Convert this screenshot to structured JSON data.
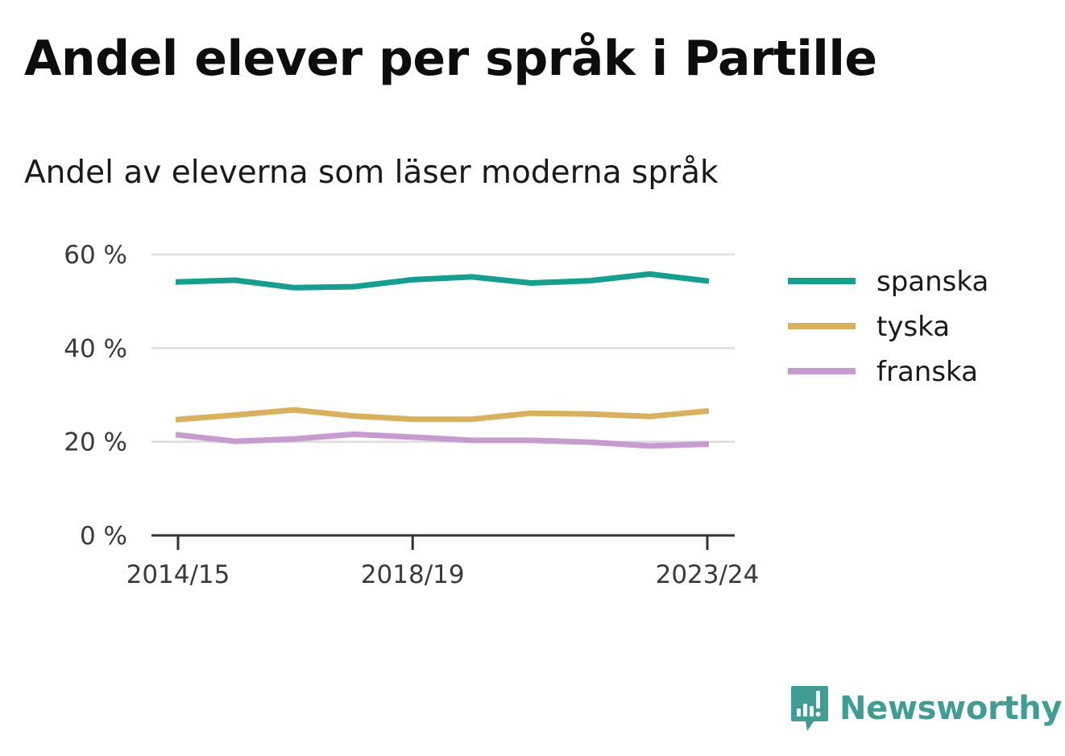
{
  "title": "Andel elever per språk i Partille",
  "subtitle": "Andel av eleverna som läser moderna språk",
  "brand": {
    "name": "Newsworthy",
    "icon": "newsworthy-logo-icon",
    "color": "#3f9d93"
  },
  "chart_data": {
    "type": "line",
    "x": [
      "2014/15",
      "2015/16",
      "2016/17",
      "2017/18",
      "2018/19",
      "2019/20",
      "2020/21",
      "2021/22",
      "2022/23",
      "2023/24"
    ],
    "xticks": [
      "2014/15",
      "2018/19",
      "2023/24"
    ],
    "yticks": [
      "0 %",
      "20 %",
      "40 %",
      "60 %"
    ],
    "ytick_values": [
      0,
      20,
      40,
      60
    ],
    "ylim": [
      0,
      60
    ],
    "grid": true,
    "legend_position": "right",
    "series": [
      {
        "name": "spanska",
        "color": "#12a090",
        "values": [
          54.1,
          54.5,
          52.9,
          53.1,
          54.6,
          55.2,
          53.9,
          54.4,
          55.8,
          54.3
        ]
      },
      {
        "name": "tyska",
        "color": "#dbb05a",
        "values": [
          24.7,
          25.7,
          26.8,
          25.5,
          24.8,
          24.8,
          26.1,
          25.9,
          25.4,
          26.6
        ]
      },
      {
        "name": "franska",
        "color": "#c79bd0",
        "values": [
          21.5,
          20.1,
          20.6,
          21.6,
          21.0,
          20.3,
          20.3,
          19.9,
          19.1,
          19.5
        ]
      }
    ]
  }
}
